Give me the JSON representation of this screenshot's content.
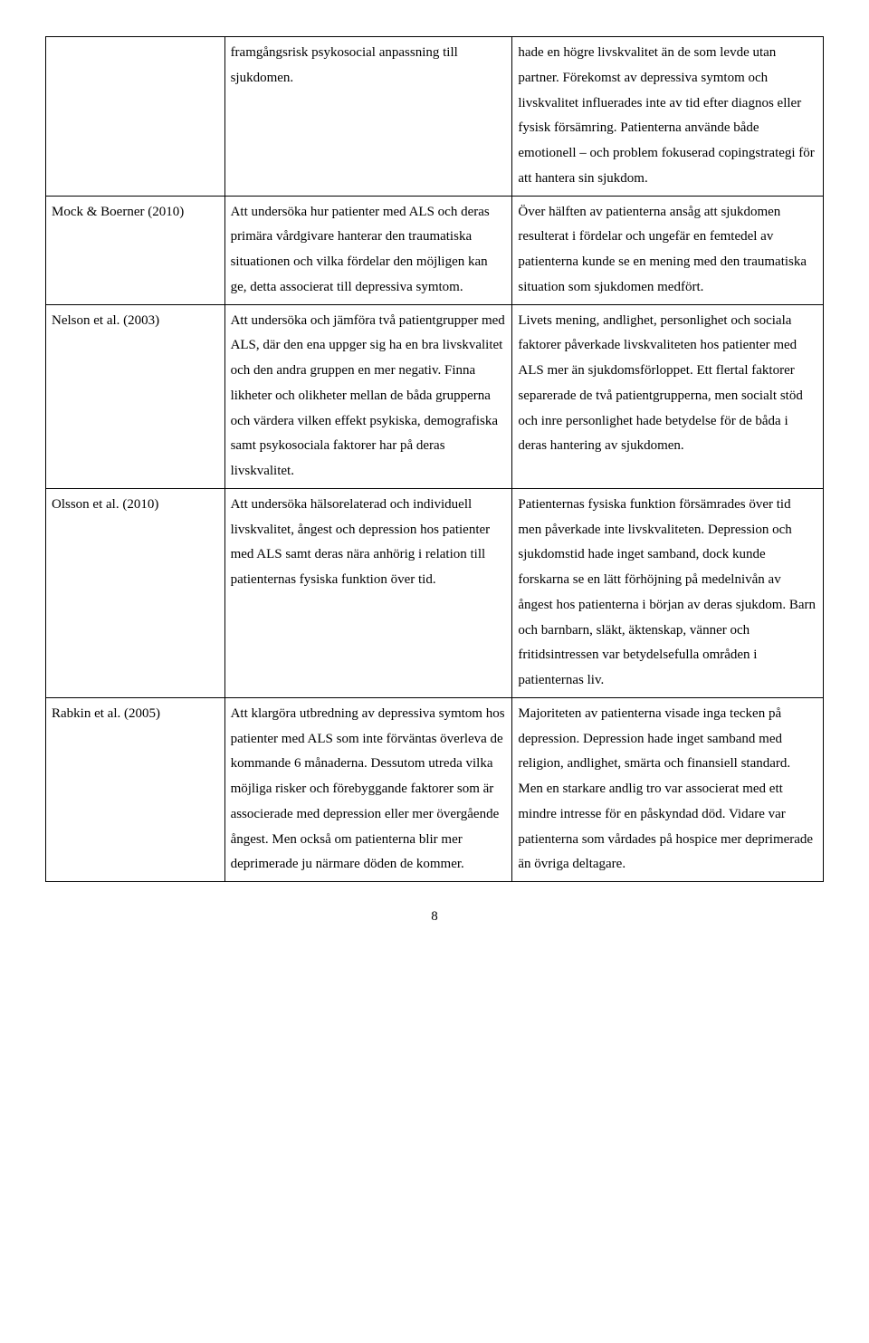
{
  "table": {
    "rows": [
      {
        "author": "",
        "col2": "framgångsrisk psykosocial anpassning till sjukdomen.",
        "col3": "hade en högre livskvalitet än de som levde utan partner. Förekomst av depressiva symtom och livskvalitet influerades inte av tid efter diagnos eller fysisk försämring. Patienterna använde både emotionell – och problem fokuserad copingstrategi för att hantera sin sjukdom."
      },
      {
        "author": "Mock & Boerner (2010)",
        "col2": "Att undersöka hur patienter med ALS och deras primära vårdgivare hanterar den traumatiska situationen och vilka fördelar den möjligen kan ge, detta associerat till depressiva symtom.",
        "col3": "Över hälften av patienterna ansåg att sjukdomen resulterat i fördelar och ungefär en femtedel av patienterna kunde se en mening med den traumatiska situation som sjukdomen medfört."
      },
      {
        "author": "Nelson et al. (2003)",
        "col2": "Att undersöka och jämföra två patientgrupper med ALS, där den ena uppger sig ha en bra livskvalitet och den andra gruppen en mer negativ. Finna likheter och olikheter mellan de båda grupperna och värdera vilken effekt psykiska, demografiska samt psykosociala faktorer har på deras livskvalitet.",
        "col3": "Livets mening, andlighet, personlighet och sociala faktorer påverkade livskvaliteten hos patienter med ALS mer än sjukdomsförloppet. Ett flertal faktorer separerade de två patientgrupperna, men socialt stöd och inre personlighet hade betydelse för de båda i deras hantering av sjukdomen."
      },
      {
        "author": "Olsson et al. (2010)",
        "col2": "Att undersöka hälsorelaterad och individuell livskvalitet, ångest och depression hos patienter med ALS samt deras nära anhörig i relation till patienternas fysiska funktion över tid.",
        "col3": "Patienternas fysiska funktion försämrades över tid men påverkade inte livskvaliteten. Depression och sjukdomstid hade inget samband, dock kunde forskarna se en lätt förhöjning på medelnivån av ångest hos patienterna i början av deras sjukdom. Barn och barnbarn, släkt, äktenskap, vänner och fritidsintressen var betydelsefulla områden i patienternas liv."
      },
      {
        "author": "Rabkin et al. (2005)",
        "col2": "Att klargöra utbredning av depressiva symtom hos patienter med ALS som inte förväntas överleva de kommande 6 månaderna. Dessutom utreda vilka möjliga risker och förebyggande faktorer som är associerade med depression eller mer övergående ångest. Men också om patienterna blir mer deprimerade ju närmare döden de kommer.",
        "col3": "Majoriteten av patienterna visade inga tecken på depression. Depression hade inget samband med religion, andlighet, smärta och finansiell standard. Men en starkare andlig tro var associerat med ett mindre intresse för en påskyndad död. Vidare var patienterna som vårdades på hospice mer deprimerade än övriga deltagare."
      }
    ]
  },
  "page_number": "8"
}
